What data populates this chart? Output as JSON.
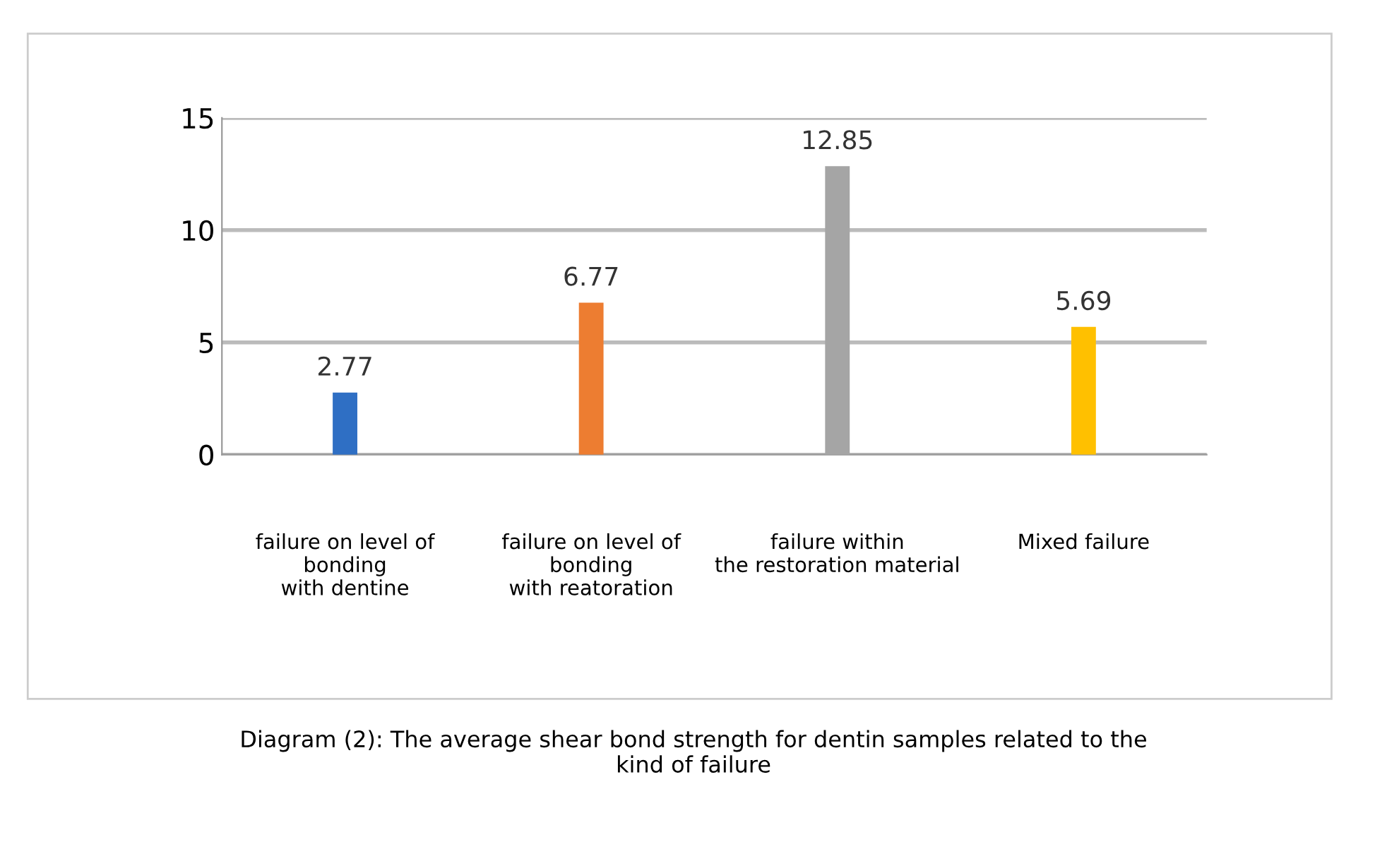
{
  "chart_data": {
    "type": "bar",
    "categories": [
      "failure on level of\nbonding\nwith dentine",
      "failure on level of\nbonding\nwith reatoration",
      "failure within\nthe restoration material",
      "Mixed failure"
    ],
    "values": [
      2.77,
      6.77,
      12.85,
      5.69
    ],
    "colors": [
      "#2f6fc4",
      "#ed7d31",
      "#a5a5a5",
      "#ffc000"
    ],
    "ylim": [
      0,
      15
    ],
    "yticks": [
      0,
      5,
      10,
      15
    ],
    "grid": "y",
    "data_labels": true,
    "annotations": [
      "Diagram (2): The average shear bond strength for dentin samples related to the\nkind of failure"
    ]
  }
}
